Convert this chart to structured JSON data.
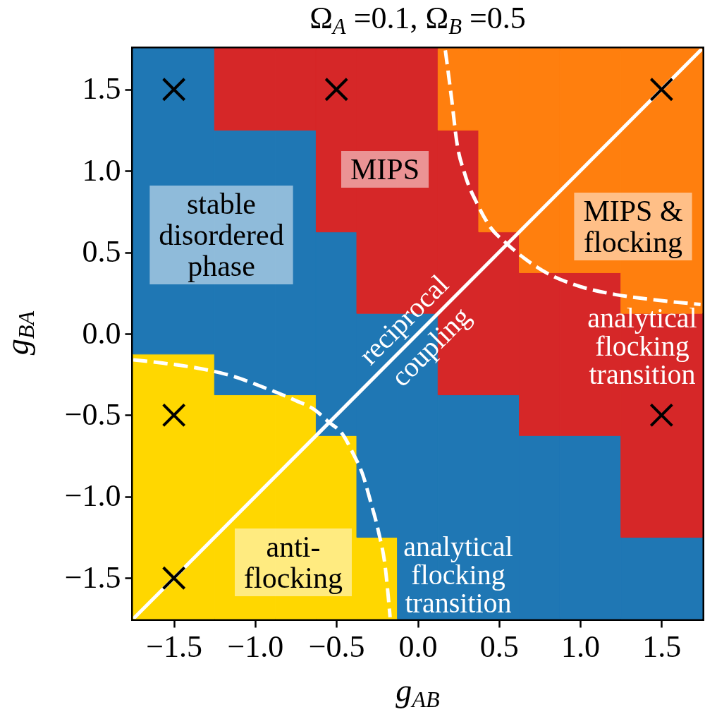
{
  "chart_data": {
    "type": "bar",
    "title": "Ω$_{A}$ =0.1, Ω$_{B}$ =0.5",
    "xlabel": "g$_{AB}$",
    "ylabel": "g$_{BA}$",
    "x": [
      -1.5,
      -1.0625,
      -0.75,
      -0.5,
      -0.25,
      0,
      0.25,
      0.5,
      0.75,
      1.0625,
      1.5
    ],
    "series": [
      {
        "name": "anti-\nflocking",
        "color": "#ffd700",
        "base": [
          -1.75,
          -1.75,
          -1.75,
          -1.75,
          -1.75,
          null,
          null,
          null,
          null,
          null,
          null
        ],
        "values": [
          1.625,
          1.375,
          1.375,
          1.125,
          0.5,
          null,
          null,
          null,
          null,
          null,
          null
        ]
      },
      {
        "name": "stable\ndisordered\nphase",
        "color": "#1f77b4",
        "base": [
          -0.125,
          -0.375,
          -0.375,
          -0.625,
          -1.25,
          -1.75,
          -1.75,
          -1.75,
          -1.75,
          -1.75,
          -1.75
        ],
        "values": [
          1.875,
          1.625,
          1.625,
          1.25,
          1.375,
          1.875,
          1.375,
          1.375,
          1.125,
          1.125,
          0.5
        ]
      },
      {
        "name": "MIPS",
        "color": "#d62728",
        "base": [
          null,
          1.25,
          1.25,
          0.625,
          0.125,
          0.125,
          -0.375,
          -0.375,
          -0.625,
          -0.625,
          -1.25
        ],
        "values": [
          null,
          0.5,
          0.5,
          1.125,
          1.625,
          1.625,
          1.625,
          1.0,
          1.0,
          1.0,
          1.375
        ]
      },
      {
        "name": "MIPS &\nflocking",
        "color": "#ff7f0e",
        "base": [
          null,
          null,
          null,
          null,
          null,
          null,
          1.25,
          0.625,
          0.375,
          0.375,
          0.125
        ],
        "values": [
          null,
          null,
          null,
          null,
          null,
          null,
          0.5,
          1.125,
          1.375,
          1.375,
          1.625
        ]
      },
      {
        "type": "line",
        "name": "analytical\nflocking\ntransition",
        "color": "#ffffff",
        "line_style": "dashed",
        "x": [
          0.17,
          0.21,
          0.24,
          0.29,
          0.37,
          0.45,
          0.54,
          0.66,
          0.8,
          1.0,
          1.22,
          1.44,
          1.74
        ],
        "values": [
          1.74,
          1.43,
          1.18,
          0.98,
          0.79,
          0.65,
          0.56,
          0.46,
          0.37,
          0.29,
          0.24,
          0.21,
          0.18
        ]
      },
      {
        "type": "line",
        "name": "analytical\nflocking\ntransition",
        "color": "#ffffff",
        "line_style": "dashed",
        "x": [
          -1.75,
          -1.57,
          -1.36,
          -1.14,
          -0.92,
          -0.75,
          -0.63,
          -0.55,
          -0.46,
          -0.4,
          -0.34,
          -0.29,
          -0.24,
          -0.2,
          -0.17
        ],
        "values": [
          -0.16,
          -0.18,
          -0.21,
          -0.26,
          -0.34,
          -0.41,
          -0.47,
          -0.54,
          -0.62,
          -0.73,
          -0.86,
          -1.03,
          -1.22,
          -1.43,
          -1.74
        ]
      },
      {
        "type": "line",
        "name": "reciprocal\ncoupling",
        "color": "#ffffff",
        "line_style": "solid",
        "x": [
          -1.75,
          1.75
        ],
        "values": [
          -1.75,
          1.75
        ]
      },
      {
        "type": "scatter",
        "color": "#000000",
        "marker": "cross",
        "x": [
          -1.5,
          -0.5,
          1.5,
          -1.5,
          1.5,
          -1.5
        ],
        "values": [
          1.5,
          1.5,
          1.5,
          -0.5,
          -0.5,
          -1.5
        ]
      }
    ],
    "xlim": [
      -1.75,
      1.75
    ],
    "ylim": [
      -1.75,
      1.75
    ],
    "xticks": [
      {
        "value": -1.5,
        "label": "−1.5"
      },
      {
        "value": -1,
        "label": "−1.0"
      },
      {
        "value": -0.5,
        "label": "−0.5"
      },
      {
        "value": 0,
        "label": "0.0"
      },
      {
        "value": 0.5,
        "label": "0.5"
      },
      {
        "value": 1,
        "label": "1.0"
      },
      {
        "value": 1.5,
        "label": "1.5"
      }
    ],
    "yticks": [
      {
        "value": -1.5,
        "label": "−1.5"
      },
      {
        "value": -1,
        "label": "−1.0"
      },
      {
        "value": -0.5,
        "label": "−0.5"
      },
      {
        "value": 0,
        "label": "0.0"
      },
      {
        "value": 0.5,
        "label": "0.5"
      },
      {
        "value": 1,
        "label": "1.0"
      },
      {
        "value": 1.5,
        "label": "1.5"
      }
    ]
  }
}
